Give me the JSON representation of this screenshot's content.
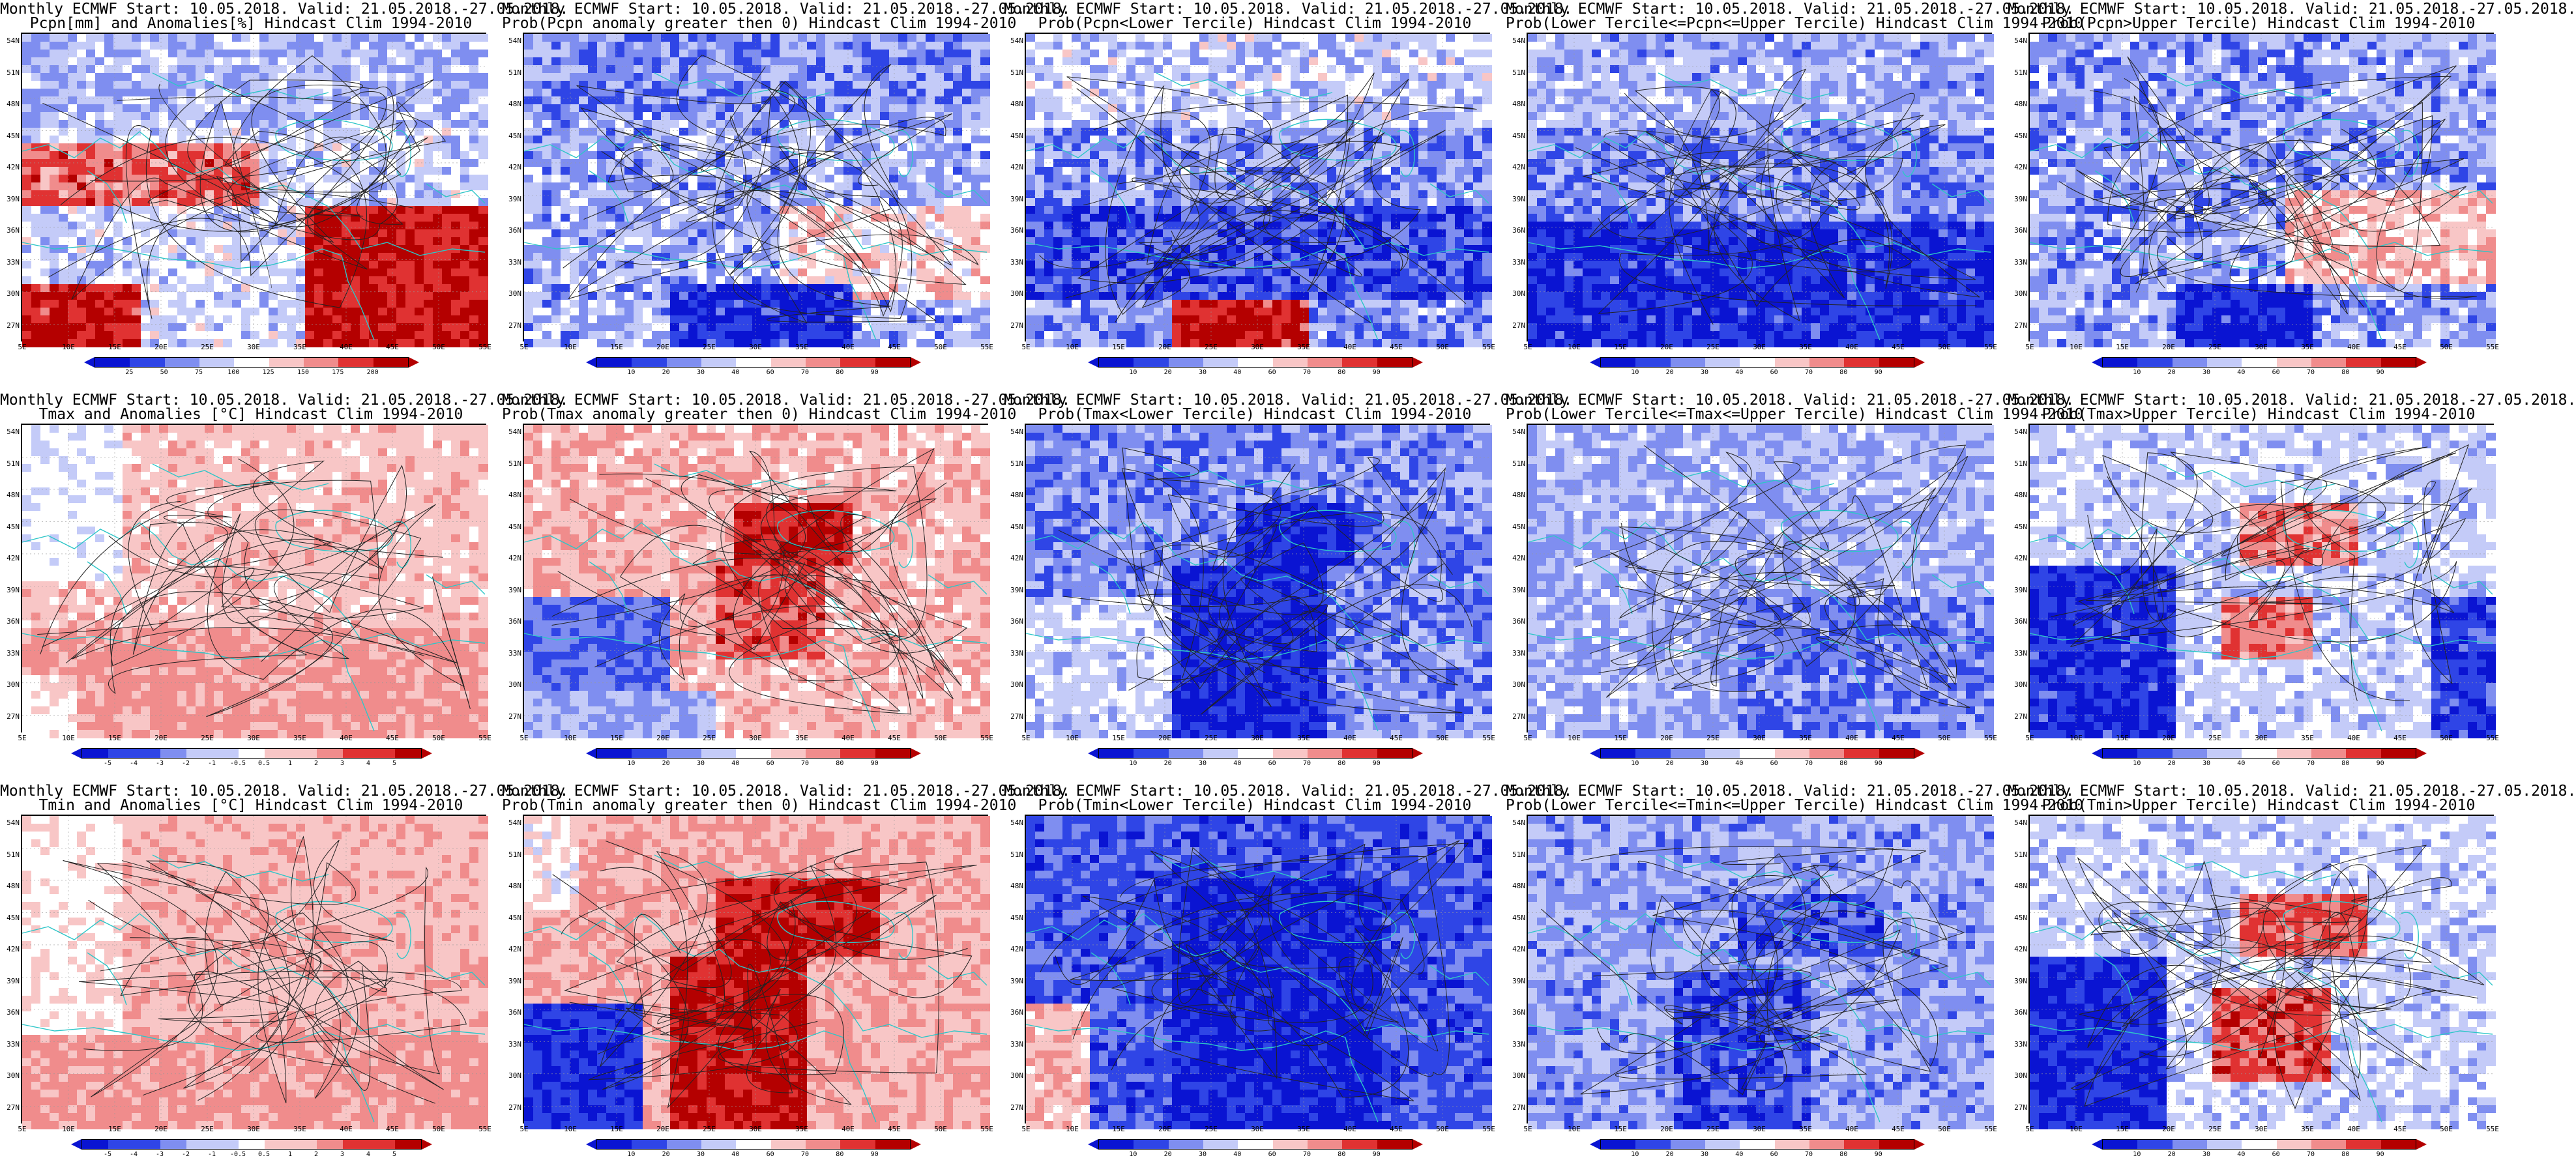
{
  "panels": [
    {
      "row": 0,
      "col": 0,
      "line1": "Monthly ECMWF Start: 10.05.2018. Valid: 21.05.2018.-27.05.2018.",
      "line2": "Pcpn[mm] and Anomalies[%] Hindcast Clim 1994-2010",
      "scheme": "anom",
      "pattern": "pcpn_anom",
      "ticks": [
        "25",
        "50",
        "75",
        "100",
        "125",
        "150",
        "175",
        "200"
      ]
    },
    {
      "row": 0,
      "col": 1,
      "line1": "Monthly ECMWF Start: 10.05.2018. Valid: 21.05.2018.-27.05.2018.",
      "line2": "Prob(Pcpn anomaly greater then 0) Hindcast Clim 1994-2010",
      "scheme": "prob",
      "pattern": "pcpn_pos",
      "ticks": [
        "10",
        "20",
        "30",
        "40",
        "60",
        "70",
        "80",
        "90"
      ]
    },
    {
      "row": 0,
      "col": 2,
      "line1": "Monthly ECMWF Start: 10.05.2018. Valid: 21.05.2018.-27.05.2018.",
      "line2": "Prob(Pcpn<Lower Tercile) Hindcast Clim 1994-2010",
      "scheme": "prob",
      "pattern": "pcpn_low",
      "ticks": [
        "10",
        "20",
        "30",
        "40",
        "60",
        "70",
        "80",
        "90"
      ]
    },
    {
      "row": 0,
      "col": 3,
      "line1": "Monthly ECMWF Start: 10.05.2018. Valid: 21.05.2018.-27.05.2018.",
      "line2": "Prob(Lower Tercile<=Pcpn<=Upper Tercile) Hindcast Clim 1994-2010",
      "scheme": "prob",
      "pattern": "pcpn_mid",
      "ticks": [
        "10",
        "20",
        "30",
        "40",
        "60",
        "70",
        "80",
        "90"
      ]
    },
    {
      "row": 0,
      "col": 4,
      "line1": "Monthly ECMWF Start: 10.05.2018. Valid: 21.05.2018.-27.05.2018.",
      "line2": "Prob(Pcpn>Upper Tercile) Hindcast Clim 1994-2010",
      "scheme": "prob",
      "pattern": "pcpn_up",
      "ticks": [
        "10",
        "20",
        "30",
        "40",
        "60",
        "70",
        "80",
        "90"
      ]
    },
    {
      "row": 1,
      "col": 0,
      "line1": "Monthly ECMWF Start: 10.05.2018. Valid: 21.05.2018.-27.05.2018.",
      "line2": "Tmax and Anomalies [°C] Hindcast Clim 1994-2010",
      "scheme": "anom",
      "pattern": "tmax_anom",
      "ticks": [
        "-5",
        "-4",
        "-3",
        "-2",
        "-1",
        "-0.5",
        "0.5",
        "1",
        "2",
        "3",
        "4",
        "5"
      ]
    },
    {
      "row": 1,
      "col": 1,
      "line1": "Monthly ECMWF Start: 10.05.2018. Valid: 21.05.2018.-27.05.2018.",
      "line2": "Prob(Tmax anomaly greater then 0) Hindcast Clim 1994-2010",
      "scheme": "prob",
      "pattern": "tmax_pos",
      "ticks": [
        "10",
        "20",
        "30",
        "40",
        "60",
        "70",
        "80",
        "90"
      ]
    },
    {
      "row": 1,
      "col": 2,
      "line1": "Monthly ECMWF Start: 10.05.2018. Valid: 21.05.2018.-27.05.2018.",
      "line2": "Prob(Tmax<Lower Tercile) Hindcast Clim 1994-2010",
      "scheme": "prob",
      "pattern": "tmax_low",
      "ticks": [
        "10",
        "20",
        "30",
        "40",
        "60",
        "70",
        "80",
        "90"
      ]
    },
    {
      "row": 1,
      "col": 3,
      "line1": "Monthly ECMWF Start: 10.05.2018. Valid: 21.05.2018.-27.05.2018.",
      "line2": "Prob(Lower Tercile<=Tmax<=Upper Tercile) Hindcast Clim 1994-2010",
      "scheme": "prob",
      "pattern": "tmax_mid",
      "ticks": [
        "10",
        "20",
        "30",
        "40",
        "60",
        "70",
        "80",
        "90"
      ]
    },
    {
      "row": 1,
      "col": 4,
      "line1": "Monthly ECMWF Start: 10.05.2018. Valid: 21.05.2018.-27.05.2018.",
      "line2": "Prob(Tmax>Upper Tercile) Hindcast Clim 1994-2010",
      "scheme": "prob",
      "pattern": "tmax_up",
      "ticks": [
        "10",
        "20",
        "30",
        "40",
        "60",
        "70",
        "80",
        "90"
      ]
    },
    {
      "row": 2,
      "col": 0,
      "line1": "Monthly ECMWF Start: 10.05.2018. Valid: 21.05.2018.-27.05.2018.",
      "line2": "Tmin and Anomalies [°C] Hindcast Clim 1994-2010",
      "scheme": "anom",
      "pattern": "tmin_anom",
      "ticks": [
        "-5",
        "-4",
        "-3",
        "-2",
        "-1",
        "-0.5",
        "0.5",
        "1",
        "2",
        "3",
        "4",
        "5"
      ]
    },
    {
      "row": 2,
      "col": 1,
      "line1": "Monthly ECMWF Start: 10.05.2018. Valid: 21.05.2018.-27.05.2018.",
      "line2": "Prob(Tmin anomaly greater then 0) Hindcast Clim 1994-2010",
      "scheme": "prob",
      "pattern": "tmin_pos",
      "ticks": [
        "10",
        "20",
        "30",
        "40",
        "60",
        "70",
        "80",
        "90"
      ]
    },
    {
      "row": 2,
      "col": 2,
      "line1": "Monthly ECMWF Start: 10.05.2018. Valid: 21.05.2018.-27.05.2018.",
      "line2": "Prob(Tmin<Lower Tercile) Hindcast Clim 1994-2010",
      "scheme": "prob",
      "pattern": "tmin_low",
      "ticks": [
        "10",
        "20",
        "30",
        "40",
        "60",
        "70",
        "80",
        "90"
      ]
    },
    {
      "row": 2,
      "col": 3,
      "line1": "Monthly ECMWF Start: 10.05.2018. Valid: 21.05.2018.-27.05.2018.",
      "line2": "Prob(Lower Tercile<=Tmin<=Upper Tercile) Hindcast Clim 1994-2010",
      "scheme": "prob",
      "pattern": "tmin_mid",
      "ticks": [
        "10",
        "20",
        "30",
        "40",
        "60",
        "70",
        "80",
        "90"
      ]
    },
    {
      "row": 2,
      "col": 4,
      "line1": "Monthly ECMWF Start: 10.05.2018. Valid: 21.05.2018.-27.05.2018.",
      "line2": "Prob(Tmin>Upper Tercile) Hindcast Clim 1994-2010",
      "scheme": "prob",
      "pattern": "tmin_up",
      "ticks": [
        "10",
        "20",
        "30",
        "40",
        "60",
        "70",
        "80",
        "90"
      ]
    }
  ],
  "lat_labels": [
    "54N",
    "51N",
    "48N",
    "45N",
    "42N",
    "39N",
    "36N",
    "33N",
    "30N",
    "27N"
  ],
  "lon_labels": [
    "5E",
    "10E",
    "15E",
    "20E",
    "25E",
    "30E",
    "35E",
    "40E",
    "45E",
    "50E",
    "55E"
  ],
  "colors": {
    "blue_dark": "#0a14d2",
    "blue_mid": "#2f45e6",
    "blue_light": "#7f8ef0",
    "blue_pale": "#c4cbf8",
    "white": "#ffffff",
    "red_pale": "#f8c6c6",
    "red_light": "#f08c8c",
    "red_mid": "#e03232",
    "red_dark": "#b40000",
    "coast": "#2ec6c8",
    "contour": "#222222"
  }
}
